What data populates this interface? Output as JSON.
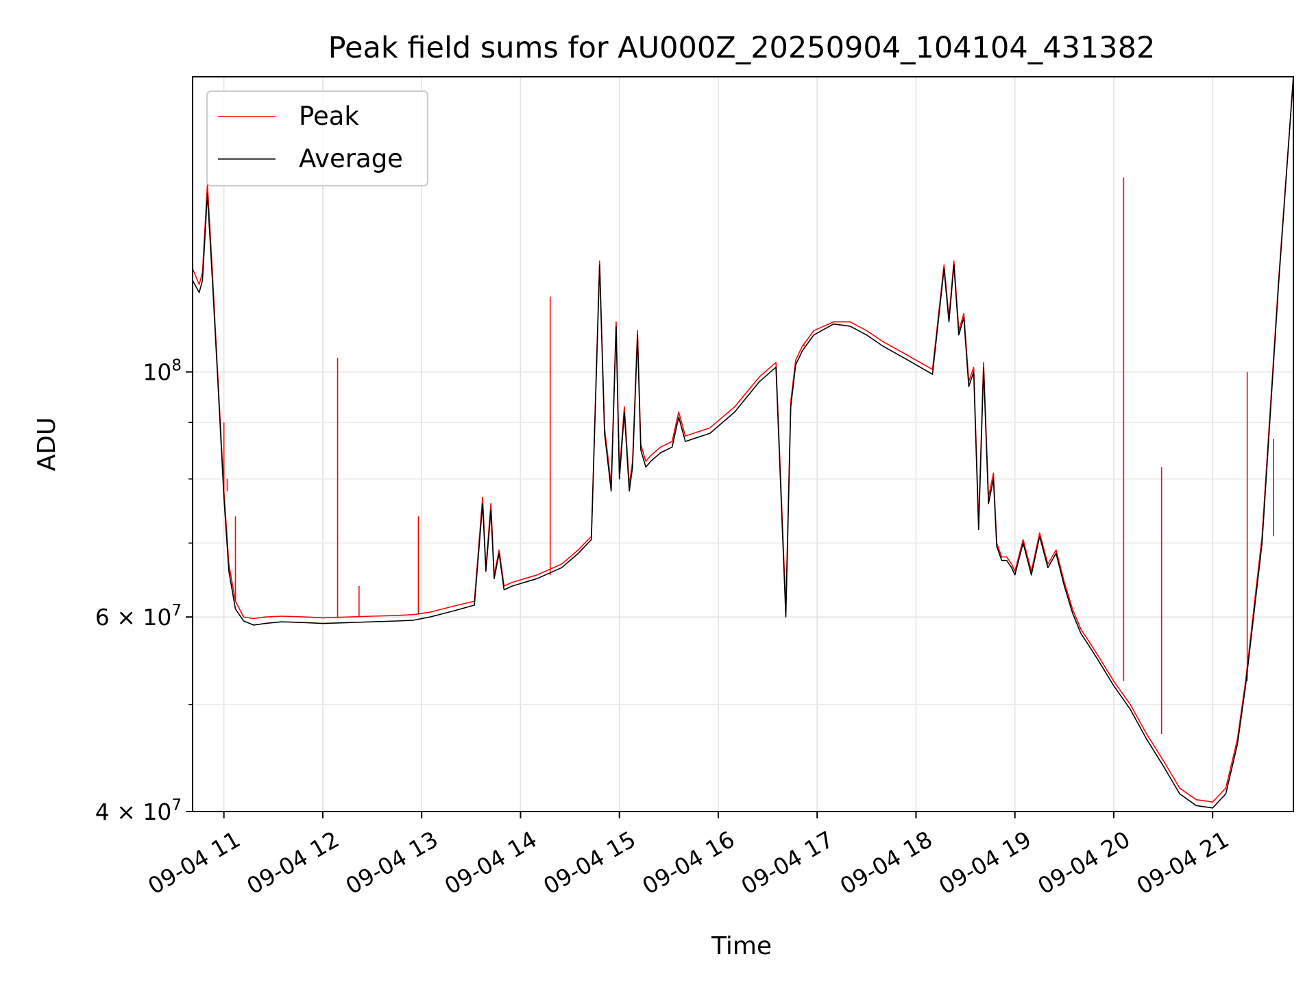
{
  "chart_data": {
    "type": "line",
    "title": "Peak field sums for AU000Z_20250904_104104_431382",
    "xlabel": "Time",
    "ylabel": "ADU",
    "y_scale": "log",
    "ylim": [
      40000000,
      185000000
    ],
    "xlim": [
      "09-04 10:41",
      "09-04 21:49"
    ],
    "x_ticks": [
      "09-04 11",
      "09-04 12",
      "09-04 13",
      "09-04 14",
      "09-04 15",
      "09-04 16",
      "09-04 17",
      "09-04 18",
      "09-04 19",
      "09-04 20",
      "09-04 21"
    ],
    "y_ticks": [
      {
        "value": 40000000,
        "label": "4 × 10",
        "exp": "7"
      },
      {
        "value": 60000000,
        "label": "6 × 10",
        "exp": "7"
      },
      {
        "value": 100000000,
        "label": "10",
        "exp": "8"
      }
    ],
    "y_minor_ticks": [
      50000000,
      70000000,
      80000000,
      90000000
    ],
    "grid": true,
    "legend": {
      "placement": "top-left",
      "entries": [
        "Peak",
        "Average"
      ]
    },
    "colors": {
      "Peak": "#ff0000",
      "Average": "#000000"
    },
    "series": [
      {
        "name": "Average",
        "x": [
          "09-04 10:41",
          "09-04 10:45",
          "09-04 10:47",
          "09-04 10:50",
          "09-04 10:53",
          "09-04 10:56",
          "09-04 11:00",
          "09-04 11:03",
          "09-04 11:07",
          "09-04 11:12",
          "09-04 11:18",
          "09-04 11:25",
          "09-04 11:35",
          "09-04 11:50",
          "09-04 12:00",
          "09-04 12:15",
          "09-04 12:30",
          "09-04 12:45",
          "09-04 12:55",
          "09-04 13:05",
          "09-04 13:20",
          "09-04 13:32",
          "09-04 13:37",
          "09-04 13:39",
          "09-04 13:42",
          "09-04 13:44",
          "09-04 13:47",
          "09-04 13:50",
          "09-04 13:55",
          "09-04 14:10",
          "09-04 14:25",
          "09-04 14:35",
          "09-04 14:43",
          "09-04 14:48",
          "09-04 14:51",
          "09-04 14:55",
          "09-04 14:58",
          "09-04 15:00",
          "09-04 15:03",
          "09-04 15:06",
          "09-04 15:08",
          "09-04 15:11",
          "09-04 15:13",
          "09-04 15:16",
          "09-04 15:19",
          "09-04 15:21",
          "09-04 15:25",
          "09-04 15:32",
          "09-04 15:36",
          "09-04 15:40",
          "09-04 15:55",
          "09-04 16:10",
          "09-04 16:25",
          "09-04 16:35",
          "09-04 16:41",
          "09-04 16:44",
          "09-04 16:47",
          "09-04 16:51",
          "09-04 16:58",
          "09-04 17:10",
          "09-04 17:20",
          "09-04 17:30",
          "09-04 17:40",
          "09-04 17:55",
          "09-04 18:10",
          "09-04 18:17",
          "09-04 18:20",
          "09-04 18:23",
          "09-04 18:26",
          "09-04 18:29",
          "09-04 18:32",
          "09-04 18:35",
          "09-04 18:38",
          "09-04 18:41",
          "09-04 18:44",
          "09-04 18:47",
          "09-04 18:49",
          "09-04 18:52",
          "09-04 18:55",
          "09-04 18:58",
          "09-04 19:00",
          "09-04 19:05",
          "09-04 19:10",
          "09-04 19:15",
          "09-04 19:20",
          "09-04 19:25",
          "09-04 19:30",
          "09-04 19:35",
          "09-04 19:40",
          "09-04 19:45",
          "09-04 19:50",
          "09-04 20:00",
          "09-04 20:10",
          "09-04 20:20",
          "09-04 20:30",
          "09-04 20:40",
          "09-04 20:50",
          "09-04 21:00",
          "09-04 21:08",
          "09-04 21:15",
          "09-04 21:20",
          "09-04 21:30",
          "09-04 21:40",
          "09-04 21:49"
        ],
        "y": [
          121000000,
          118000000,
          121000000,
          145000000,
          121000000,
          100000000,
          77000000,
          66000000,
          61000000,
          59500000,
          59000000,
          59200000,
          59400000,
          59300000,
          59200000,
          59300000,
          59400000,
          59500000,
          59600000,
          60000000,
          60800000,
          61500000,
          76000000,
          66000000,
          75000000,
          65000000,
          68500000,
          63500000,
          64000000,
          65000000,
          66500000,
          68500000,
          70500000,
          125000000,
          88000000,
          78000000,
          110000000,
          80000000,
          92000000,
          78000000,
          82000000,
          108000000,
          85000000,
          82000000,
          83000000,
          83500000,
          84500000,
          85500000,
          91000000,
          86500000,
          88000000,
          92000000,
          98000000,
          101000000,
          60000000,
          93000000,
          101500000,
          104500000,
          108000000,
          110500000,
          110000000,
          108000000,
          105500000,
          102500000,
          99500000,
          124000000,
          111000000,
          125000000,
          108000000,
          112000000,
          97000000,
          100000000,
          72000000,
          101000000,
          76000000,
          80000000,
          69500000,
          67500000,
          67500000,
          66500000,
          65500000,
          70000000,
          65500000,
          71000000,
          66500000,
          68500000,
          64000000,
          60500000,
          58000000,
          56500000,
          55000000,
          52000000,
          49500000,
          46500000,
          44000000,
          41500000,
          40500000,
          40300000,
          41500000,
          46000000,
          52000000,
          70000000,
          120000000,
          185000000
        ]
      },
      {
        "name": "Peak",
        "x": [
          "09-04 10:41",
          "09-04 10:45",
          "09-04 10:47",
          "09-04 10:50",
          "09-04 10:53",
          "09-04 10:56",
          "09-04 11:00",
          "09-04 11:03",
          "09-04 11:07",
          "09-04 11:12",
          "09-04 11:18",
          "09-04 11:25",
          "09-04 11:35",
          "09-04 11:50",
          "09-04 12:00",
          "09-04 12:15",
          "09-04 12:30",
          "09-04 12:45",
          "09-04 12:55",
          "09-04 13:05",
          "09-04 13:20",
          "09-04 13:32",
          "09-04 13:37",
          "09-04 13:39",
          "09-04 13:42",
          "09-04 13:44",
          "09-04 13:47",
          "09-04 13:50",
          "09-04 13:55",
          "09-04 14:10",
          "09-04 14:25",
          "09-04 14:35",
          "09-04 14:43",
          "09-04 14:48",
          "09-04 14:51",
          "09-04 14:55",
          "09-04 14:58",
          "09-04 15:00",
          "09-04 15:03",
          "09-04 15:06",
          "09-04 15:08",
          "09-04 15:11",
          "09-04 15:13",
          "09-04 15:16",
          "09-04 15:19",
          "09-04 15:21",
          "09-04 15:25",
          "09-04 15:32",
          "09-04 15:36",
          "09-04 15:40",
          "09-04 15:55",
          "09-04 16:10",
          "09-04 16:25",
          "09-04 16:35",
          "09-04 16:41",
          "09-04 16:44",
          "09-04 16:47",
          "09-04 16:51",
          "09-04 16:58",
          "09-04 17:10",
          "09-04 17:20",
          "09-04 17:30",
          "09-04 17:40",
          "09-04 17:55",
          "09-04 18:10",
          "09-04 18:17",
          "09-04 18:20",
          "09-04 18:23",
          "09-04 18:26",
          "09-04 18:29",
          "09-04 18:32",
          "09-04 18:35",
          "09-04 18:38",
          "09-04 18:41",
          "09-04 18:44",
          "09-04 18:47",
          "09-04 18:49",
          "09-04 18:52",
          "09-04 18:55",
          "09-04 18:58",
          "09-04 19:00",
          "09-04 19:05",
          "09-04 19:10",
          "09-04 19:15",
          "09-04 19:20",
          "09-04 19:25",
          "09-04 19:30",
          "09-04 19:35",
          "09-04 19:40",
          "09-04 19:45",
          "09-04 19:50",
          "09-04 20:00",
          "09-04 20:10",
          "09-04 20:20",
          "09-04 20:30",
          "09-04 20:40",
          "09-04 20:50",
          "09-04 21:00",
          "09-04 21:08",
          "09-04 21:15",
          "09-04 21:20",
          "09-04 21:30",
          "09-04 21:40",
          "09-04 21:49"
        ],
        "y": [
          124000000,
          120000000,
          123000000,
          148000000,
          123000000,
          101000000,
          78000000,
          67000000,
          62000000,
          60000000,
          59800000,
          60000000,
          60100000,
          60000000,
          59900000,
          60000000,
          60100000,
          60200000,
          60300000,
          60600000,
          61400000,
          62000000,
          77000000,
          66500000,
          76000000,
          65500000,
          69000000,
          64000000,
          64500000,
          65500000,
          67000000,
          69000000,
          71000000,
          126000000,
          89000000,
          79000000,
          111000000,
          81000000,
          93000000,
          79000000,
          83000000,
          109000000,
          86000000,
          83000000,
          84000000,
          84500000,
          85500000,
          86500000,
          92000000,
          87500000,
          89000000,
          93000000,
          99000000,
          102000000,
          61000000,
          94000000,
          102500000,
          105500000,
          109000000,
          111000000,
          111000000,
          109000000,
          106500000,
          103500000,
          100500000,
          125000000,
          112000000,
          126000000,
          109000000,
          113000000,
          98000000,
          101000000,
          73000000,
          102000000,
          77000000,
          81000000,
          70000000,
          68000000,
          68000000,
          67000000,
          66000000,
          70500000,
          66000000,
          71500000,
          67000000,
          69000000,
          64500000,
          61000000,
          58500000,
          57000000,
          55500000,
          52500000,
          50000000,
          47000000,
          44500000,
          42000000,
          41000000,
          40800000,
          42000000,
          46500000,
          52500000,
          71000000,
          121000000,
          185000000
        ],
        "spikes": [
          {
            "x": "09-04 11:00",
            "y": 90000000
          },
          {
            "x": "09-04 11:02",
            "y": 80000000
          },
          {
            "x": "09-04 11:07",
            "y": 74000000
          },
          {
            "x": "09-04 12:09",
            "y": 103000000
          },
          {
            "x": "09-04 12:22",
            "y": 64000000
          },
          {
            "x": "09-04 12:58",
            "y": 74000000
          },
          {
            "x": "09-04 14:18",
            "y": 117000000
          },
          {
            "x": "09-04 16:52",
            "y": 106000000
          },
          {
            "x": "09-04 20:06",
            "y": 150000000
          },
          {
            "x": "09-04 20:29",
            "y": 82000000
          },
          {
            "x": "09-04 21:21",
            "y": 100000000
          },
          {
            "x": "09-04 21:37",
            "y": 87000000
          }
        ]
      }
    ]
  }
}
